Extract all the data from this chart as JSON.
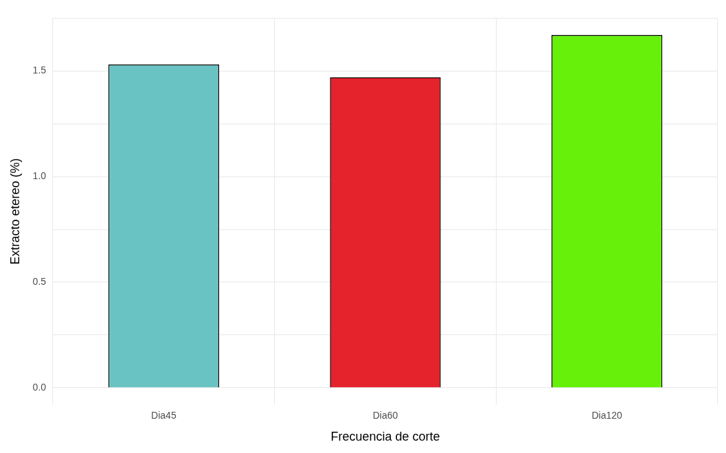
{
  "chart_data": {
    "type": "bar",
    "xlabel": "Frecuencia de corte",
    "ylabel": "Extracto etereo (%)",
    "categories": [
      "Dia45",
      "Dia60",
      "Dia120"
    ],
    "values": [
      1.53,
      1.47,
      1.67
    ],
    "colors": [
      "#6ac3c3",
      "#e5232d",
      "#66f00a"
    ],
    "ylim": [
      -0.08,
      1.75
    ],
    "yticks": [
      {
        "value": 0,
        "label": "0.0"
      },
      {
        "value": 0.25,
        "label": null
      },
      0.5,
      {
        "value": 0.75,
        "label": null
      },
      {
        "value": 1,
        "label": "1.0"
      },
      {
        "value": 1.25,
        "label": null
      },
      1.5,
      {
        "value": 1.75,
        "label": null
      }
    ],
    "grid": true,
    "legend": false
  }
}
